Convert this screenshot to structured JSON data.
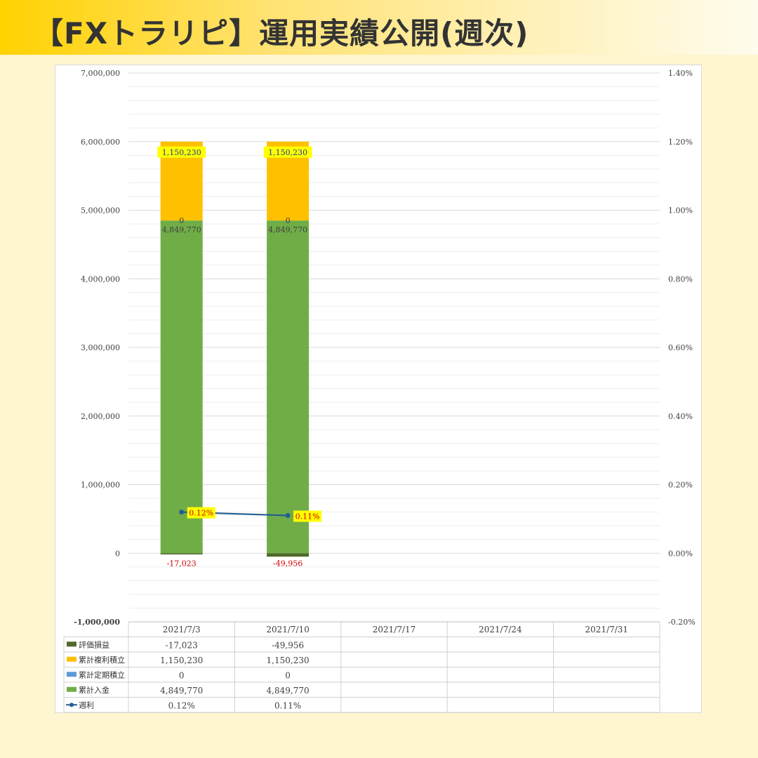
{
  "header": {
    "title": "【FXトラリピ】運用実績公開(週次)"
  },
  "colors": {
    "eval": "#4f6b2a",
    "profit": "#ffc000",
    "fixed": "#5b9bd5",
    "deposit": "#70ad47",
    "line": "#255e91",
    "negative": "#d00000",
    "highlight": "#ffff00"
  },
  "chart_data": {
    "type": "bar",
    "stacked": true,
    "categories": [
      "2021/7/3",
      "2021/7/10",
      "2021/7/17",
      "2021/7/24",
      "2021/7/31"
    ],
    "y_left": {
      "ticks": [
        "7,000,000",
        "6,000,000",
        "5,000,000",
        "4,000,000",
        "3,000,000",
        "2,000,000",
        "1,000,000",
        "0",
        "-1,000,000"
      ],
      "ylim": [
        -1000000,
        7000000
      ]
    },
    "y_right": {
      "ticks": [
        "1.40%",
        "1.20%",
        "1.00%",
        "0.80%",
        "0.60%",
        "0.40%",
        "0.20%",
        "0.00%",
        "-0.20%"
      ],
      "ylim": [
        -0.2,
        1.4
      ]
    },
    "grid": true,
    "legend": "bottom-table",
    "series": [
      {
        "name": "評価損益",
        "kind": "bar",
        "values": [
          -17023,
          -49956,
          null,
          null,
          null
        ],
        "labels": [
          "-17,023",
          "-49,956",
          "",
          "",
          ""
        ]
      },
      {
        "name": "累計複利積立",
        "kind": "bar",
        "values": [
          1150230,
          1150230,
          null,
          null,
          null
        ],
        "labels": [
          "1,150,230",
          "1,150,230",
          "",
          "",
          ""
        ]
      },
      {
        "name": "累計定期積立",
        "kind": "bar",
        "values": [
          0,
          0,
          null,
          null,
          null
        ],
        "labels": [
          "0",
          "0",
          "",
          "",
          ""
        ]
      },
      {
        "name": "累計入金",
        "kind": "bar",
        "values": [
          4849770,
          4849770,
          null,
          null,
          null
        ],
        "labels": [
          "4,849,770",
          "4,849,770",
          "",
          "",
          ""
        ]
      },
      {
        "name": "週利",
        "kind": "line",
        "axis": "right",
        "values": [
          0.12,
          0.11,
          null,
          null,
          null
        ],
        "labels": [
          "0.12%",
          "0.11%",
          "",
          "",
          ""
        ]
      }
    ]
  }
}
